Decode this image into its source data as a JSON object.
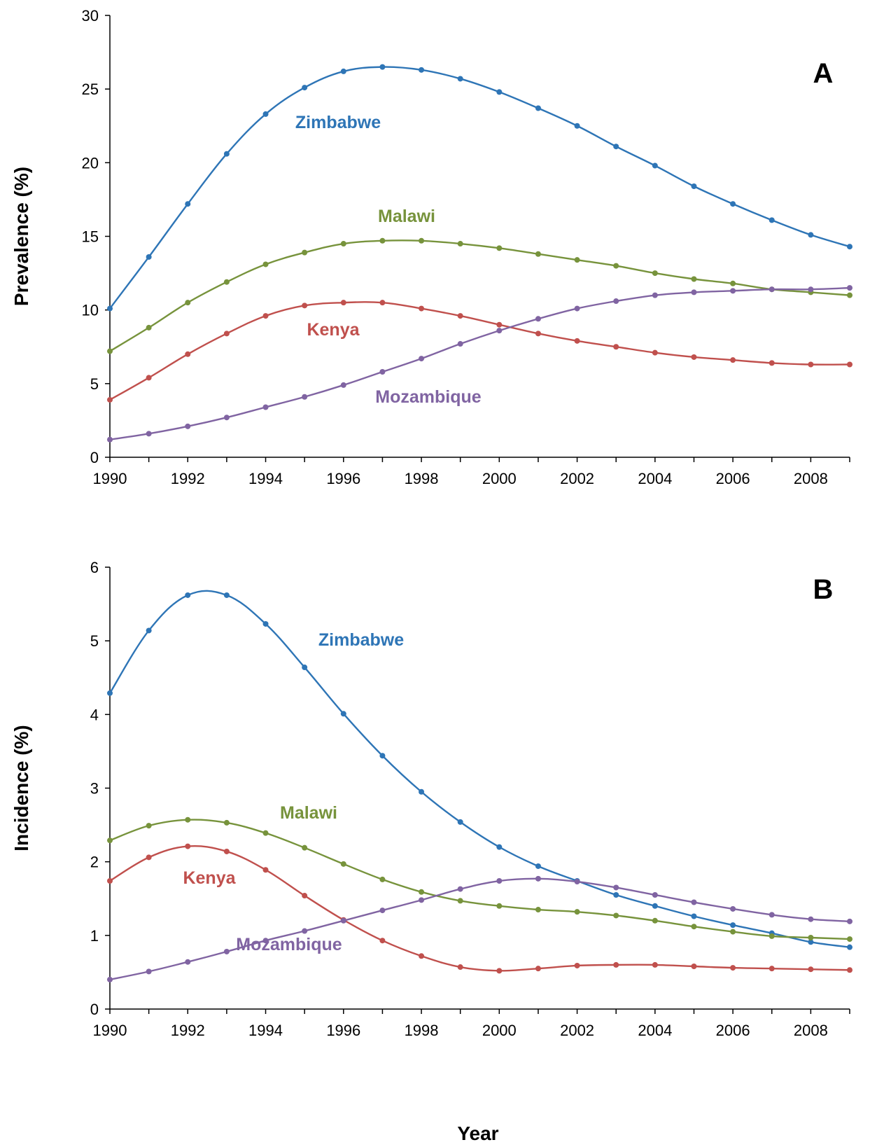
{
  "figure": {
    "xlabel": "Year"
  },
  "colors": {
    "Zimbabwe": "#2e75b6",
    "Malawi": "#77933c",
    "Kenya": "#c0504d",
    "Mozambique": "#8064a2"
  },
  "chart_data": [
    {
      "type": "line",
      "panel": "A",
      "title": "",
      "xlabel": "",
      "ylabel": "Prevalence (%)",
      "xlim": [
        1990,
        2009
      ],
      "ylim": [
        0,
        30
      ],
      "xticks": [
        1990,
        1992,
        1994,
        1996,
        1998,
        2000,
        2002,
        2004,
        2006,
        2008
      ],
      "yticks": [
        0,
        5,
        10,
        15,
        20,
        25,
        30
      ],
      "grid": false,
      "legend": "inline labels",
      "x": [
        1990,
        1991,
        1992,
        1993,
        1994,
        1995,
        1996,
        1997,
        1998,
        1999,
        2000,
        2001,
        2002,
        2003,
        2004,
        2005,
        2006,
        2007,
        2008,
        2009
      ],
      "series": [
        {
          "name": "Zimbabwe",
          "values": [
            10.1,
            13.6,
            17.2,
            20.6,
            23.3,
            25.1,
            26.2,
            26.5,
            26.3,
            25.7,
            24.8,
            23.7,
            22.5,
            21.1,
            19.8,
            18.4,
            17.2,
            16.1,
            15.1,
            14.3
          ]
        },
        {
          "name": "Malawi",
          "values": [
            7.2,
            8.8,
            10.5,
            11.9,
            13.1,
            13.9,
            14.5,
            14.7,
            14.7,
            14.5,
            14.2,
            13.8,
            13.4,
            13.0,
            12.5,
            12.1,
            11.8,
            11.4,
            11.2,
            11.0
          ]
        },
        {
          "name": "Kenya",
          "values": [
            3.9,
            5.4,
            7.0,
            8.4,
            9.6,
            10.3,
            10.5,
            10.5,
            10.1,
            9.6,
            9.0,
            8.4,
            7.9,
            7.5,
            7.1,
            6.8,
            6.6,
            6.4,
            6.3,
            6.3
          ]
        },
        {
          "name": "Mozambique",
          "values": [
            1.2,
            1.6,
            2.1,
            2.7,
            3.4,
            4.1,
            4.9,
            5.8,
            6.7,
            7.7,
            8.6,
            9.4,
            10.1,
            10.6,
            11.0,
            11.2,
            11.3,
            11.4,
            11.4,
            11.5
          ]
        }
      ]
    },
    {
      "type": "line",
      "panel": "B",
      "title": "",
      "xlabel": "Year",
      "ylabel": "Incidence (%)",
      "xlim": [
        1990,
        2009
      ],
      "ylim": [
        0,
        6
      ],
      "xticks": [
        1990,
        1992,
        1994,
        1996,
        1998,
        2000,
        2002,
        2004,
        2006,
        2008
      ],
      "yticks": [
        0,
        1,
        2,
        3,
        4,
        5,
        6
      ],
      "grid": false,
      "legend": "inline labels",
      "x": [
        1990,
        1991,
        1992,
        1993,
        1994,
        1995,
        1996,
        1997,
        1998,
        1999,
        2000,
        2001,
        2002,
        2003,
        2004,
        2005,
        2006,
        2007,
        2008,
        2009
      ],
      "series": [
        {
          "name": "Zimbabwe",
          "values": [
            4.29,
            5.14,
            5.62,
            5.62,
            5.23,
            4.64,
            4.01,
            3.44,
            2.95,
            2.54,
            2.2,
            1.94,
            1.74,
            1.55,
            1.4,
            1.26,
            1.14,
            1.03,
            0.91,
            0.84
          ]
        },
        {
          "name": "Malawi",
          "values": [
            2.29,
            2.49,
            2.57,
            2.53,
            2.39,
            2.19,
            1.97,
            1.76,
            1.59,
            1.47,
            1.4,
            1.35,
            1.32,
            1.27,
            1.2,
            1.12,
            1.05,
            0.99,
            0.97,
            0.95
          ]
        },
        {
          "name": "Kenya",
          "values": [
            1.74,
            2.06,
            2.21,
            2.14,
            1.89,
            1.54,
            1.21,
            0.93,
            0.72,
            0.57,
            0.52,
            0.55,
            0.59,
            0.6,
            0.6,
            0.58,
            0.56,
            0.55,
            0.54,
            0.53
          ]
        },
        {
          "name": "Mozambique",
          "values": [
            0.4,
            0.51,
            0.64,
            0.78,
            0.93,
            1.06,
            1.2,
            1.34,
            1.48,
            1.63,
            1.74,
            1.77,
            1.73,
            1.65,
            1.55,
            1.45,
            1.36,
            1.28,
            1.22,
            1.19
          ]
        }
      ]
    }
  ]
}
